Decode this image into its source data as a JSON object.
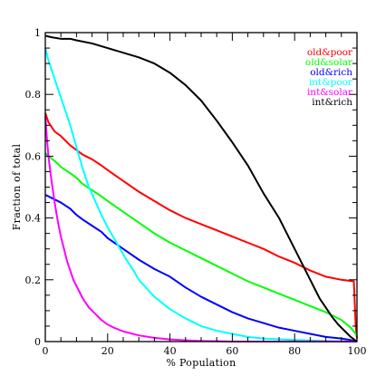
{
  "chart_data": {
    "type": "line",
    "title": "",
    "xlabel": "% Population",
    "ylabel": "Fraction of total",
    "xlim": [
      0,
      100
    ],
    "ylim": [
      0,
      1
    ],
    "xticks": [
      0,
      20,
      40,
      60,
      80,
      100
    ],
    "yticks": [
      0,
      0.2,
      0.4,
      0.6,
      0.8,
      1
    ],
    "xtick_labels": [
      "0",
      "20",
      "40",
      "60",
      "80",
      "100"
    ],
    "ytick_labels": [
      "0",
      "0.2",
      "0.4",
      "0.6",
      "0.8",
      "1"
    ],
    "grid": false,
    "legend_position": "top-right",
    "series": [
      {
        "name": "old&poor",
        "color": "#ff0000",
        "x": [
          0,
          1,
          3,
          5,
          8,
          10,
          12,
          15,
          18,
          20,
          25,
          30,
          35,
          40,
          45,
          50,
          55,
          60,
          65,
          70,
          75,
          80,
          85,
          90,
          95,
          99,
          99.6,
          100
        ],
        "y": [
          0.74,
          0.71,
          0.68,
          0.665,
          0.635,
          0.62,
          0.605,
          0.59,
          0.57,
          0.555,
          0.52,
          0.485,
          0.455,
          0.425,
          0.4,
          0.38,
          0.36,
          0.34,
          0.32,
          0.3,
          0.275,
          0.255,
          0.23,
          0.21,
          0.2,
          0.195,
          0.05,
          0.01
        ]
      },
      {
        "name": "old&solar",
        "color": "#00ff00",
        "x": [
          0,
          1,
          3,
          5,
          8,
          10,
          12,
          15,
          18,
          20,
          25,
          30,
          35,
          40,
          45,
          50,
          55,
          60,
          65,
          70,
          75,
          80,
          85,
          90,
          95,
          98,
          100
        ],
        "y": [
          0.61,
          0.6,
          0.585,
          0.565,
          0.545,
          0.53,
          0.51,
          0.49,
          0.47,
          0.455,
          0.42,
          0.385,
          0.35,
          0.32,
          0.295,
          0.27,
          0.245,
          0.22,
          0.195,
          0.175,
          0.155,
          0.135,
          0.115,
          0.095,
          0.07,
          0.045,
          0.02
        ]
      },
      {
        "name": "old&rich",
        "color": "#0000ff",
        "x": [
          0,
          2,
          5,
          8,
          10,
          12,
          15,
          18,
          20,
          25,
          30,
          35,
          40,
          45,
          50,
          55,
          60,
          65,
          70,
          75,
          80,
          85,
          90,
          95,
          98,
          100
        ],
        "y": [
          0.475,
          0.465,
          0.45,
          0.43,
          0.41,
          0.395,
          0.375,
          0.355,
          0.335,
          0.3,
          0.265,
          0.235,
          0.21,
          0.175,
          0.145,
          0.12,
          0.095,
          0.075,
          0.06,
          0.045,
          0.035,
          0.025,
          0.015,
          0.01,
          0.005,
          0.0
        ]
      },
      {
        "name": "int&poor",
        "color": "#00ffff",
        "x": [
          0,
          1,
          2,
          4,
          6,
          8,
          10,
          12,
          14,
          16,
          18,
          20,
          22,
          24,
          26,
          28,
          30,
          35,
          40,
          45,
          50,
          55,
          60,
          65,
          70,
          80,
          90,
          100
        ],
        "y": [
          0.95,
          0.91,
          0.88,
          0.82,
          0.76,
          0.7,
          0.63,
          0.56,
          0.5,
          0.455,
          0.41,
          0.37,
          0.335,
          0.3,
          0.265,
          0.235,
          0.2,
          0.145,
          0.105,
          0.075,
          0.05,
          0.035,
          0.025,
          0.015,
          0.01,
          0.005,
          0.002,
          0.0
        ]
      },
      {
        "name": "int&solar",
        "color": "#ff00ff",
        "x": [
          0,
          0.5,
          1,
          2,
          3,
          4,
          5,
          6,
          7,
          8,
          9,
          10,
          12,
          14,
          16,
          18,
          20,
          22,
          25,
          30,
          35,
          40,
          45,
          50,
          55,
          60,
          70,
          80,
          100
        ],
        "y": [
          0.73,
          0.66,
          0.6,
          0.52,
          0.45,
          0.39,
          0.34,
          0.3,
          0.26,
          0.23,
          0.2,
          0.18,
          0.14,
          0.11,
          0.09,
          0.07,
          0.055,
          0.045,
          0.033,
          0.02,
          0.012,
          0.007,
          0.004,
          0.002,
          0.001,
          0.0,
          0.0,
          0.0,
          0.0
        ]
      },
      {
        "name": "int&rich",
        "color": "#000000",
        "x": [
          0,
          2,
          5,
          8,
          10,
          15,
          20,
          25,
          30,
          35,
          40,
          45,
          50,
          55,
          60,
          65,
          70,
          75,
          80,
          85,
          88,
          90,
          92,
          94,
          96,
          98,
          100
        ],
        "y": [
          0.99,
          0.985,
          0.98,
          0.98,
          0.975,
          0.965,
          0.95,
          0.935,
          0.92,
          0.9,
          0.87,
          0.83,
          0.78,
          0.715,
          0.645,
          0.57,
          0.48,
          0.4,
          0.3,
          0.2,
          0.14,
          0.11,
          0.08,
          0.055,
          0.035,
          0.015,
          0.0
        ]
      }
    ]
  }
}
